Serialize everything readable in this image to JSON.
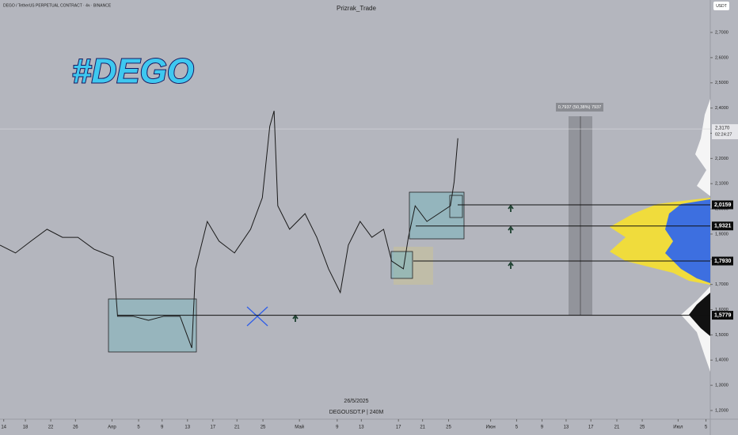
{
  "chart_data": {
    "type": "line",
    "header": "DEGO / TetherUS PERPETUAL CONTRACT · 4ч · BINANCE",
    "title": "Prizrak_Trade",
    "currency": "USDT",
    "logo": "#DEGO",
    "measure_label": "0,7937 (50,38%) 7937",
    "date_label": "26/5/2025",
    "symbol_label": "DEGOUSDT.P | 240M",
    "last_price": {
      "value": 2.317,
      "label": "2,3170"
    },
    "countdown": "02:24:27",
    "xlim": [
      -0.6,
      114.2
    ],
    "ylim": [
      1.1655,
      2.8287
    ],
    "yticks": [
      {
        "value": 1.2,
        "label": "1,2000"
      },
      {
        "value": 1.3,
        "label": "1,3000"
      },
      {
        "value": 1.4,
        "label": "1,4000"
      },
      {
        "value": 1.5,
        "label": "1,5000"
      },
      {
        "value": 1.6,
        "label": "1,6000"
      },
      {
        "value": 1.7,
        "label": "1,7000"
      },
      {
        "value": 1.8,
        "label": "1,8000"
      },
      {
        "value": 1.9,
        "label": "1,9000"
      },
      {
        "value": 2.0,
        "label": "2,0000"
      },
      {
        "value": 2.1,
        "label": "2,1000"
      },
      {
        "value": 2.2,
        "label": "2,2000"
      },
      {
        "value": 2.3,
        "label": "2,3000"
      },
      {
        "value": 2.4,
        "label": "2,4000"
      },
      {
        "value": 2.5,
        "label": "2,5000"
      },
      {
        "value": 2.6,
        "label": "2,6000"
      },
      {
        "value": 2.7,
        "label": "2,7000"
      }
    ],
    "xticks": [
      {
        "value": 0,
        "label": "14"
      },
      {
        "value": 3.5,
        "label": "18"
      },
      {
        "value": 7.6,
        "label": "22"
      },
      {
        "value": 11.6,
        "label": "26"
      },
      {
        "value": 17.5,
        "label": "Апр"
      },
      {
        "value": 21.8,
        "label": "5"
      },
      {
        "value": 25.6,
        "label": "9"
      },
      {
        "value": 29.7,
        "label": "13"
      },
      {
        "value": 33.8,
        "label": "17"
      },
      {
        "value": 37.7,
        "label": "21"
      },
      {
        "value": 41.9,
        "label": "25"
      },
      {
        "value": 47.8,
        "label": "Май"
      },
      {
        "value": 53.9,
        "label": "9"
      },
      {
        "value": 57.8,
        "label": "13"
      },
      {
        "value": 63.8,
        "label": "17"
      },
      {
        "value": 67.7,
        "label": "21"
      },
      {
        "value": 71.9,
        "label": "25"
      },
      {
        "value": 78.7,
        "label": "Июн"
      },
      {
        "value": 82.9,
        "label": "5"
      },
      {
        "value": 87.0,
        "label": "9"
      },
      {
        "value": 90.9,
        "label": "13"
      },
      {
        "value": 94.9,
        "label": "17"
      },
      {
        "value": 99.1,
        "label": "21"
      },
      {
        "value": 103.2,
        "label": "25"
      },
      {
        "value": 109.0,
        "label": "Июл"
      },
      {
        "value": 113.5,
        "label": "5"
      }
    ],
    "levels": [
      {
        "value": 2.0159,
        "label": "2,0159"
      },
      {
        "value": 1.9321,
        "label": "1,9321"
      },
      {
        "value": 1.793,
        "label": "1,7930"
      },
      {
        "value": 1.5779,
        "label": "1,5779"
      }
    ],
    "series": [
      {
        "color": "#1a1a1a",
        "x": [
          -0.6,
          1.9,
          4.4,
          7.0,
          9.5,
          12.0,
          14.6,
          17.7,
          18.4,
          20.9,
          23.4,
          25.9,
          28.5,
          30.4,
          31.0,
          32.9,
          34.8,
          37.3,
          39.9,
          41.8,
          43.0,
          43.7,
          44.3,
          46.2,
          48.7,
          50.6,
          52.5,
          54.4,
          55.7,
          57.6,
          59.5,
          61.4,
          62.7,
          64.6,
          65.4,
          66.5,
          68.4,
          70.3,
          72.2,
          72.8,
          73.4
        ],
        "values": [
          1.856,
          1.825,
          1.872,
          1.919,
          1.887,
          1.887,
          1.84,
          1.809,
          1.574,
          1.574,
          1.558,
          1.574,
          1.574,
          1.448,
          1.762,
          1.95,
          1.872,
          1.825,
          1.919,
          2.044,
          2.327,
          2.389,
          2.012,
          1.919,
          1.981,
          1.887,
          1.762,
          1.668,
          1.856,
          1.95,
          1.887,
          1.919,
          1.793,
          1.762,
          1.887,
          2.012,
          1.95,
          1.981,
          2.012,
          2.107,
          2.28
        ]
      }
    ]
  }
}
